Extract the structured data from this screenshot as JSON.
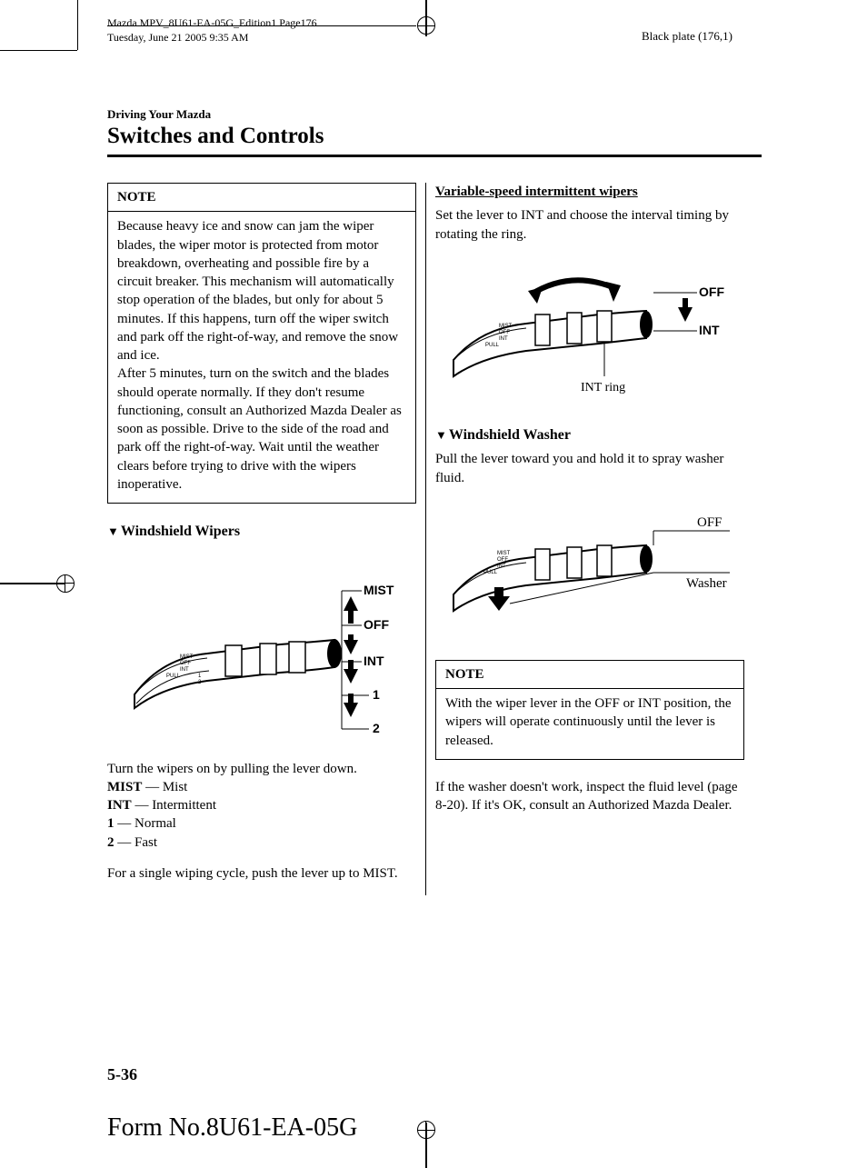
{
  "print": {
    "line1": "Mazda MPV_8U61-EA-05G_Edition1 Page176",
    "line2": "Tuesday, June 21 2005 9:35 AM",
    "plate": "Black plate (176,1)"
  },
  "header": {
    "chapter": "Driving Your Mazda",
    "section": "Switches and Controls"
  },
  "left": {
    "note_title": "NOTE",
    "note_body": "Because heavy ice and snow can jam the wiper blades, the wiper motor is protected from motor breakdown, overheating and possible fire by a circuit breaker. This mechanism will automatically stop operation of the blades, but only for about 5 minutes. If this happens, turn off the wiper switch and park off the right-of-way, and remove the snow and ice.\nAfter 5 minutes, turn on the switch and the blades should operate normally. If they don't resume functioning, consult an Authorized Mazda Dealer as soon as possible. Drive to the side of the road and park off the right-of-way. Wait until the weather clears before trying to drive with the wipers inoperative.",
    "wipers_heading": "Windshield Wipers",
    "diagram1": {
      "labels": [
        "MIST",
        "OFF",
        "INT",
        "1",
        "2"
      ]
    },
    "turn_on": "Turn the wipers on by pulling the lever down.",
    "defs": [
      {
        "k": "MIST",
        "v": "Mist"
      },
      {
        "k": "INT",
        "v": "Intermittent"
      },
      {
        "k": "1",
        "v": "Normal"
      },
      {
        "k": "2",
        "v": "Fast"
      }
    ],
    "single_cycle": "For a single wiping cycle, push the lever up to MIST."
  },
  "right": {
    "var_heading": "Variable-speed intermittent wipers",
    "var_body": "Set the lever to INT and choose the interval timing by rotating the ring.",
    "diagram2": {
      "labels": [
        "OFF",
        "INT"
      ],
      "caption": "INT ring"
    },
    "washer_heading": "Windshield Washer",
    "washer_body": "Pull the lever toward you and hold it to spray washer fluid.",
    "diagram3": {
      "labels": [
        "OFF",
        "Washer"
      ]
    },
    "note_title": "NOTE",
    "note_body": "With the wiper lever in the OFF or INT position, the wipers will operate continuously until the lever is released.",
    "footer_para": "If the washer doesn't work, inspect the fluid level (page 8-20). If it's OK, consult an Authorized Mazda Dealer."
  },
  "page_num": "5-36",
  "form_no": "Form No.8U61-EA-05G"
}
